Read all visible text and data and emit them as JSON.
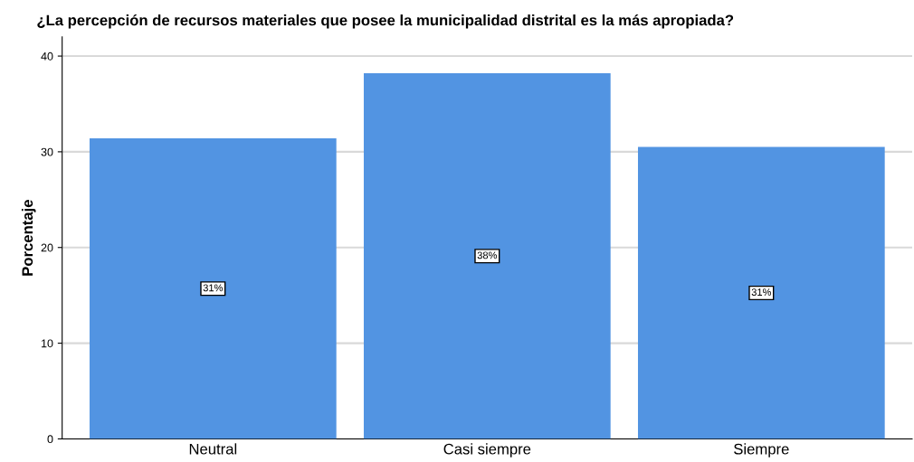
{
  "chart_data": {
    "type": "bar",
    "title": "¿La percepción de recursos materiales que posee la municipalidad distrital es la más apropiada?",
    "ylabel": "Porcentaje",
    "categories": [
      "Neutral",
      "Casi siempre",
      "Siempre"
    ],
    "values": [
      31.4,
      38.2,
      30.5
    ],
    "value_labels": [
      "31%",
      "38%",
      "31%"
    ],
    "color": "#5294e2",
    "ylim": [
      0,
      42
    ],
    "yticks": [
      0,
      10,
      20,
      30,
      40
    ],
    "grid": "y"
  }
}
